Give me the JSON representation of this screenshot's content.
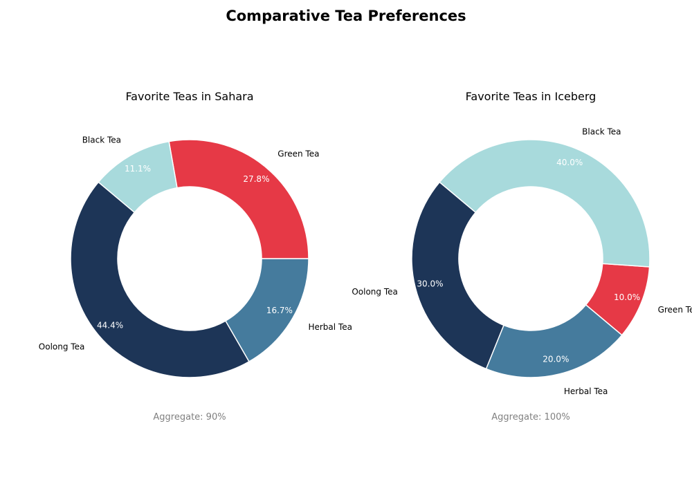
{
  "title": "Comparative Tea Preferences",
  "colors": {
    "Oolong Tea": "#1d3557",
    "Herbal Tea": "#457b9d",
    "Green Tea": "#e63946",
    "Black Tea": "#a8dadc",
    "edge": "#ffffff"
  },
  "chart_data": [
    {
      "type": "pie",
      "title": "Favorite Teas in Sahara",
      "categories": [
        "Oolong Tea",
        "Herbal Tea",
        "Green Tea",
        "Black Tea"
      ],
      "values": [
        40,
        15,
        25,
        10
      ],
      "percent_labels": [
        "44.4%",
        "16.7%",
        "27.8%",
        "11.1%"
      ],
      "aggregate": "Aggregate: 90%",
      "donut": true
    },
    {
      "type": "pie",
      "title": "Favorite Teas in Iceberg",
      "categories": [
        "Oolong Tea",
        "Herbal Tea",
        "Green Tea",
        "Black Tea"
      ],
      "values": [
        30,
        20,
        10,
        40
      ],
      "percent_labels": [
        "30.0%",
        "20.0%",
        "10.0%",
        "40.0%"
      ],
      "aggregate": "Aggregate: 100%",
      "donut": true
    }
  ]
}
